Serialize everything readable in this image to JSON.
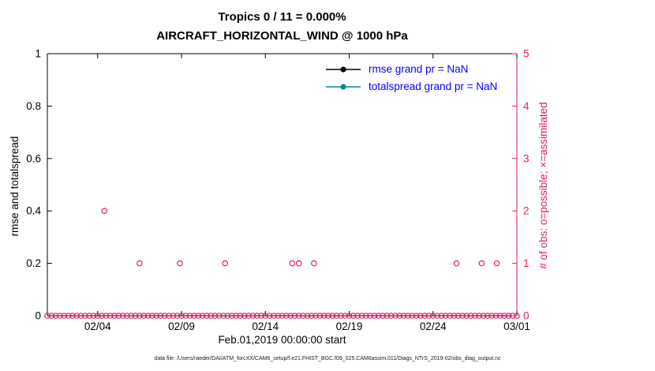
{
  "chart_data": {
    "type": "scatter",
    "title_line1": "Tropics 0 / 11 = 0.000%",
    "title_line2": "AIRCRAFT_HORIZONTAL_WIND @ 1000 hPa",
    "xlabel": "Feb.01,2019 00:00:00 start",
    "ylabel_left": "rmse and totalspread",
    "ylabel_right": "# of obs: o=possible; ×=assimilated",
    "x_range_days": [
      0,
      28
    ],
    "ylim_left": [
      0,
      1
    ],
    "ylim_right": [
      0,
      5
    ],
    "grid": false,
    "xticks": [
      {
        "day": 3,
        "label": "02/04"
      },
      {
        "day": 8,
        "label": "02/09"
      },
      {
        "day": 13,
        "label": "02/14"
      },
      {
        "day": 18,
        "label": "02/19"
      },
      {
        "day": 23,
        "label": "02/24"
      },
      {
        "day": 28,
        "label": "03/01"
      }
    ],
    "yticks_left": [
      {
        "value": 0,
        "label": "0"
      },
      {
        "value": 0.2,
        "label": "0.2"
      },
      {
        "value": 0.4,
        "label": "0.4"
      },
      {
        "value": 0.6,
        "label": "0.6"
      },
      {
        "value": 0.8,
        "label": "0.8"
      },
      {
        "value": 1,
        "label": "1"
      }
    ],
    "yticks_right": [
      {
        "value": 0,
        "label": "0"
      },
      {
        "value": 1,
        "label": "1"
      },
      {
        "value": 2,
        "label": "2"
      },
      {
        "value": 3,
        "label": "3"
      },
      {
        "value": 4,
        "label": "4"
      },
      {
        "value": 5,
        "label": "5"
      }
    ],
    "series": [
      {
        "name": "rmse",
        "legend_label": "rmse grand pr = NaN",
        "color": "#000000",
        "values": "NaN"
      },
      {
        "name": "totalspread",
        "legend_label": "totalspread grand pr = NaN",
        "color": "#008b8b",
        "values": "NaN"
      },
      {
        "name": "possible-obs-count",
        "marker": "o",
        "axis": "right",
        "color": "#e6196a",
        "baseline": {
          "start_day": 0,
          "end_day": 28,
          "step_days": 0.25,
          "count": 0
        },
        "points": [
          {
            "day": 3.4,
            "count": 2
          },
          {
            "day": 5.5,
            "count": 1
          },
          {
            "day": 7.9,
            "count": 1
          },
          {
            "day": 10.6,
            "count": 1
          },
          {
            "day": 14.6,
            "count": 1
          },
          {
            "day": 15.0,
            "count": 1
          },
          {
            "day": 15.9,
            "count": 1
          },
          {
            "day": 24.4,
            "count": 1
          },
          {
            "day": 25.9,
            "count": 1
          },
          {
            "day": 26.8,
            "count": 1
          }
        ]
      }
    ],
    "legend": {
      "text_color": "#0000ff",
      "position": "top-right-inside",
      "entries": [
        {
          "label": "rmse grand pr = NaN",
          "color": "#000000"
        },
        {
          "label": "totalspread grand pr = NaN",
          "color": "#008b8b"
        }
      ]
    },
    "colors": {
      "axis": "#000000",
      "obs": "#e6196a",
      "background": "#ffffff"
    },
    "footer": "data file: /Users/raeder/DAI/ATM_forcXX/CAM6_setup/f.e21.FHIST_BGC.f09_025.CAM6assim.011/Diags_NTrS_2019-02/obs_diag_output.nc"
  }
}
